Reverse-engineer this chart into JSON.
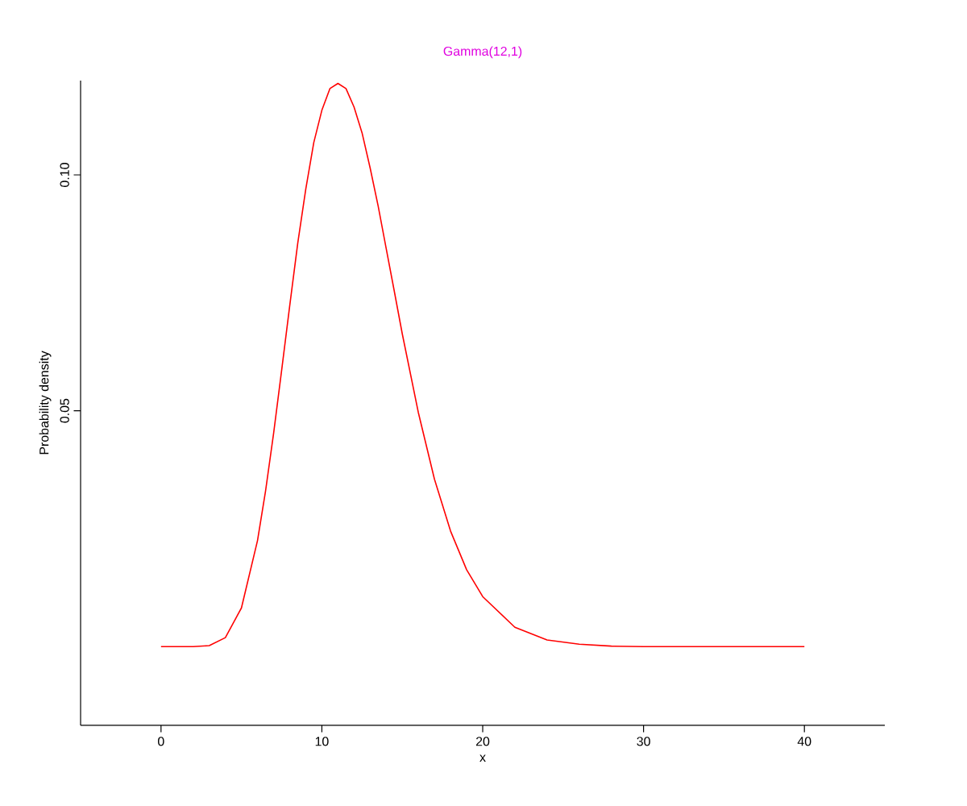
{
  "chart_data": {
    "type": "line",
    "title": "Gamma(12,1)",
    "xlabel": "x",
    "ylabel": "Probability density",
    "x": [
      0,
      2,
      3,
      4,
      5,
      6,
      6.5,
      7,
      7.5,
      8,
      8.5,
      9,
      9.5,
      10,
      10.5,
      11,
      11.5,
      12,
      12.5,
      13,
      13.5,
      14,
      14.5,
      15,
      16,
      17,
      18,
      19,
      20,
      22,
      24,
      26,
      28,
      30,
      35,
      40
    ],
    "series": [
      {
        "color": "#ff0000",
        "values": [
          0,
          0,
          0.0002,
          0.0019,
          0.0082,
          0.0225,
          0.033,
          0.0452,
          0.0586,
          0.0722,
          0.0855,
          0.097,
          0.1069,
          0.1137,
          0.1183,
          0.1194,
          0.1183,
          0.1144,
          0.1089,
          0.1015,
          0.0934,
          0.0844,
          0.0754,
          0.0663,
          0.0496,
          0.0355,
          0.0245,
          0.0163,
          0.0106,
          0.0041,
          0.0014,
          0.0005,
          0.0001,
          0,
          0,
          0
        ]
      }
    ],
    "xlim": [
      -5,
      45
    ],
    "ylim": [
      -0.0167,
      0.12
    ],
    "xticks": [
      0,
      10,
      20,
      30,
      40
    ],
    "yticks": [
      {
        "value": 0.05,
        "label": "0.05"
      },
      {
        "value": 0.1,
        "label": "0.10"
      }
    ],
    "grid": false,
    "marker": "none",
    "line_style": "solid"
  }
}
